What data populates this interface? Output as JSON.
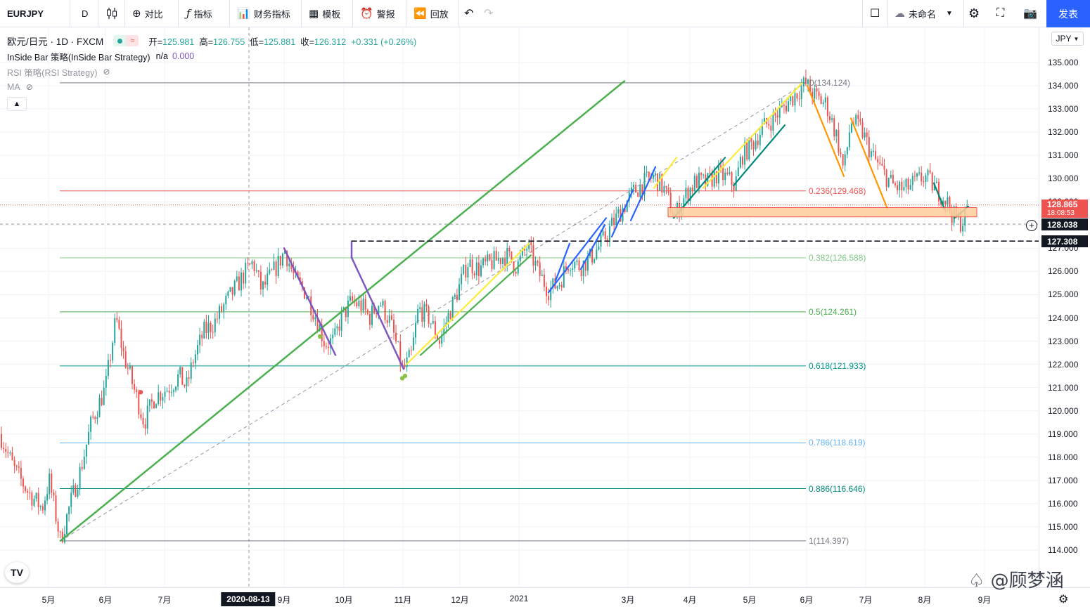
{
  "toolbar": {
    "symbol": "EURJPY",
    "interval": "D",
    "compare": "对比",
    "indicators": "指标",
    "financials": "财务指标",
    "templates": "模板",
    "alerts": "警报",
    "replay": "回放",
    "layout_name": "未命名",
    "publish": "发表",
    "icons": [
      "candles-icon",
      "plus-circle-icon",
      "fx-icon",
      "bar-chart-icon",
      "template-icon",
      "alarm-icon",
      "replay-icon",
      "undo-icon",
      "redo-icon",
      "square-icon",
      "cloud-icon",
      "chevron-down-icon",
      "gear-icon",
      "fullscreen-icon",
      "camera-icon"
    ]
  },
  "legend": {
    "title": "欧元/日元 · 1D · FXCM",
    "open_label": "开=",
    "open": "125.981",
    "high_label": "高=",
    "high": "126.755",
    "low_label": "低=",
    "low": "125.881",
    "close_label": "收=",
    "close": "126.312",
    "change": "+0.331",
    "change_pct": "(+0.26%)",
    "insidebar": "InSide Bar 策略(InSide Bar Strategy)",
    "insidebar_val1": "n/a",
    "insidebar_val2": "0.000",
    "rsi": "RSI 策略(RSI Strategy)",
    "ma": "MA"
  },
  "colors": {
    "up": "#26a69a",
    "down": "#ef5350",
    "trend": "#4caf50",
    "purple": "#7e57c2",
    "blue": "#2962ff",
    "yellow": "#ffeb3b",
    "teal": "#00897b",
    "orange": "#ff9800",
    "zone_fill": "#ffcc99",
    "zone_border": "#ef5350"
  },
  "chart_data": {
    "type": "candlestick",
    "symbol": "EURJPY",
    "interval": "1D",
    "currency": "JPY",
    "y_ticks": [
      114,
      115,
      116,
      117,
      118,
      119,
      120,
      121,
      122,
      123,
      124,
      125,
      126,
      127,
      128,
      129,
      130,
      131,
      132,
      133,
      134,
      135
    ],
    "ylim": [
      113.6,
      135.9
    ],
    "x_ticks": [
      "5月",
      "6月",
      "7月",
      "9月",
      "10月",
      "11月",
      "12月",
      "2021",
      "3月",
      "4月",
      "5月",
      "6月",
      "7月",
      "8月",
      "9月"
    ],
    "crosshair_date": "2020-08-13",
    "price_labels": [
      {
        "value": 128.865,
        "text": "128.865",
        "sub": "18:08:53",
        "color": "#ef5350"
      },
      {
        "value": 128.038,
        "text": "128.038",
        "color": "#131722"
      },
      {
        "value": 127.308,
        "text": "127.308",
        "color": "#131722"
      }
    ],
    "fibonacci": [
      {
        "level": "0",
        "price": 134.124,
        "label": "0(134.124)",
        "color": "#787b86"
      },
      {
        "level": "0.236",
        "price": 129.468,
        "label": "0.236(129.468)",
        "color": "#ef5350"
      },
      {
        "level": "0.382",
        "price": 126.588,
        "label": "0.382(126.588)",
        "color": "#81c784"
      },
      {
        "level": "0.5",
        "price": 124.261,
        "label": "0.5(124.261)",
        "color": "#4caf50"
      },
      {
        "level": "0.618",
        "price": 121.933,
        "label": "0.618(121.933)",
        "color": "#009688"
      },
      {
        "level": "0.786",
        "price": 118.619,
        "label": "0.786(118.619)",
        "color": "#64b5f6"
      },
      {
        "level": "0.886",
        "price": 116.646,
        "label": "0.886(116.646)",
        "color": "#00897b"
      },
      {
        "level": "1",
        "price": 114.397,
        "label": "1(114.397)",
        "color": "#787b86"
      }
    ],
    "path": [
      [
        0,
        119
      ],
      [
        20,
        117.5
      ],
      [
        40,
        116.5
      ],
      [
        60,
        115.8
      ],
      [
        70,
        117
      ],
      [
        86,
        114.4
      ],
      [
        100,
        116
      ],
      [
        115,
        117.5
      ],
      [
        130,
        119.5
      ],
      [
        150,
        121
      ],
      [
        165,
        124
      ],
      [
        175,
        122.5
      ],
      [
        190,
        121
      ],
      [
        205,
        119.5
      ],
      [
        220,
        120.6
      ],
      [
        240,
        121
      ],
      [
        255,
        121.5
      ],
      [
        265,
        121
      ],
      [
        275,
        122.2
      ],
      [
        290,
        123.4
      ],
      [
        305,
        123.8
      ],
      [
        320,
        124.6
      ],
      [
        335,
        125.3
      ],
      [
        350,
        126
      ],
      [
        360,
        126.4
      ],
      [
        372,
        125.2
      ],
      [
        385,
        125.8
      ],
      [
        395,
        126.3
      ],
      [
        405,
        126.9
      ],
      [
        420,
        125.6
      ],
      [
        435,
        125.1
      ],
      [
        450,
        124
      ],
      [
        462,
        122.9
      ],
      [
        475,
        123
      ],
      [
        485,
        124
      ],
      [
        500,
        124.7
      ],
      [
        515,
        124.5
      ],
      [
        525,
        124
      ],
      [
        540,
        124.7
      ],
      [
        555,
        123.8
      ],
      [
        565,
        122.7
      ],
      [
        573,
        121.7
      ],
      [
        585,
        122.4
      ],
      [
        595,
        124.4
      ],
      [
        610,
        124
      ],
      [
        625,
        123
      ],
      [
        640,
        124.3
      ],
      [
        655,
        125.5
      ],
      [
        665,
        126.4
      ],
      [
        680,
        126.1
      ],
      [
        700,
        126.4
      ],
      [
        720,
        126.7
      ],
      [
        735,
        126.2
      ],
      [
        750,
        127.1
      ],
      [
        765,
        126
      ],
      [
        780,
        125.2
      ],
      [
        795,
        125.5
      ],
      [
        810,
        126.5
      ],
      [
        825,
        126.2
      ],
      [
        840,
        126.6
      ],
      [
        855,
        127.2
      ],
      [
        870,
        128
      ],
      [
        885,
        128.7
      ],
      [
        900,
        129.4
      ],
      [
        915,
        129.8
      ],
      [
        930,
        130.1
      ],
      [
        945,
        129.5
      ],
      [
        955,
        128.7
      ],
      [
        960,
        128.4
      ],
      [
        975,
        129.3
      ],
      [
        990,
        129.9
      ],
      [
        1005,
        129.8
      ],
      [
        1020,
        130.2
      ],
      [
        1035,
        130
      ],
      [
        1045,
        129.7
      ],
      [
        1055,
        131
      ],
      [
        1070,
        131.5
      ],
      [
        1085,
        132.2
      ],
      [
        1100,
        132.6
      ],
      [
        1115,
        133.1
      ],
      [
        1130,
        133.6
      ],
      [
        1145,
        134.1
      ],
      [
        1160,
        133.5
      ],
      [
        1175,
        133.2
      ],
      [
        1190,
        131.8
      ],
      [
        1200,
        130.3
      ],
      [
        1210,
        132.5
      ],
      [
        1225,
        132.1
      ],
      [
        1240,
        131
      ],
      [
        1255,
        130.3
      ],
      [
        1270,
        129.7
      ],
      [
        1285,
        129.5
      ],
      [
        1300,
        129.8
      ],
      [
        1315,
        130.1
      ],
      [
        1330,
        129.6
      ],
      [
        1345,
        129.1
      ],
      [
        1355,
        128.4
      ],
      [
        1368,
        128.1
      ],
      [
        1378,
        128.9
      ]
    ]
  }
}
